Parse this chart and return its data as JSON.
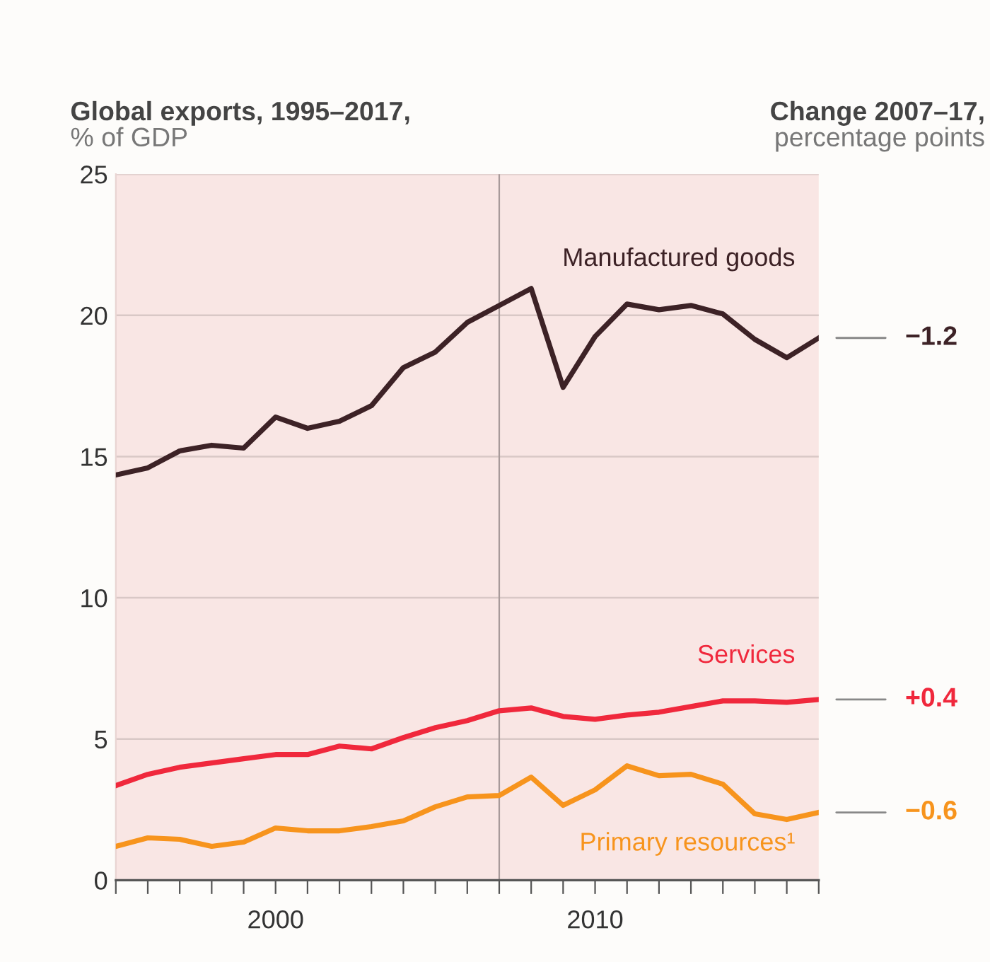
{
  "chart_data": {
    "type": "line",
    "title": "Global exports, 1995–2017,",
    "subtitle": "% of GDP",
    "x": [
      1995,
      1996,
      1997,
      1998,
      1999,
      2000,
      2001,
      2002,
      2003,
      2004,
      2005,
      2006,
      2007,
      2008,
      2009,
      2010,
      2011,
      2012,
      2013,
      2014,
      2015,
      2016,
      2017
    ],
    "series": [
      {
        "name": "Manufactured goods",
        "color": "#3d2226",
        "values": [
          14.35,
          14.6,
          15.2,
          15.4,
          15.3,
          16.4,
          16.0,
          16.25,
          16.8,
          18.15,
          18.7,
          19.75,
          20.35,
          20.95,
          17.45,
          19.25,
          20.4,
          20.2,
          20.35,
          20.05,
          19.15,
          18.5,
          19.2
        ]
      },
      {
        "name": "Services",
        "color": "#f0283c",
        "values": [
          3.35,
          3.75,
          4.0,
          4.15,
          4.3,
          4.45,
          4.45,
          4.75,
          4.65,
          5.05,
          5.4,
          5.65,
          6.0,
          6.1,
          5.8,
          5.7,
          5.85,
          5.95,
          6.15,
          6.35,
          6.35,
          6.3,
          6.4
        ]
      },
      {
        "name": "Primary resources¹",
        "color": "#f7941d",
        "values": [
          1.2,
          1.5,
          1.45,
          1.2,
          1.35,
          1.85,
          1.75,
          1.75,
          1.9,
          2.1,
          2.6,
          2.95,
          3.0,
          3.65,
          2.65,
          3.2,
          4.05,
          3.7,
          3.75,
          3.4,
          2.35,
          2.15,
          2.4
        ]
      }
    ],
    "xlim": [
      1995,
      2017
    ],
    "xticks": [
      {
        "value": 1995,
        "label": null
      },
      {
        "value": 1996,
        "label": null
      },
      {
        "value": 1997,
        "label": null
      },
      {
        "value": 1998,
        "label": null
      },
      {
        "value": 1999,
        "label": null
      },
      2000,
      {
        "value": 2001,
        "label": null
      },
      {
        "value": 2002,
        "label": null
      },
      {
        "value": 2003,
        "label": null
      },
      {
        "value": 2004,
        "label": null
      },
      {
        "value": 2005,
        "label": null
      },
      {
        "value": 2006,
        "label": null
      },
      {
        "value": 2007,
        "label": null
      },
      {
        "value": 2008,
        "label": null
      },
      {
        "value": 2009,
        "label": null
      },
      2010,
      {
        "value": 2011,
        "label": null
      },
      {
        "value": 2012,
        "label": null
      },
      {
        "value": 2013,
        "label": null
      },
      {
        "value": 2014,
        "label": null
      },
      {
        "value": 2015,
        "label": null
      },
      {
        "value": 2016,
        "label": null
      },
      {
        "value": 2017,
        "label": null
      }
    ],
    "ylim": [
      0,
      25
    ],
    "yticks": [
      0,
      5,
      10,
      15,
      20,
      25
    ],
    "grid": "y",
    "ref_lines": [
      {
        "axis": "x",
        "value": 2007,
        "color": "#a89a9a"
      }
    ],
    "annotations": [
      "Change 2007–17,",
      "percentage points",
      "−1.2",
      "+0.4",
      "−0.6"
    ],
    "line_style": "solid",
    "marker": "none",
    "legend": false
  }
}
